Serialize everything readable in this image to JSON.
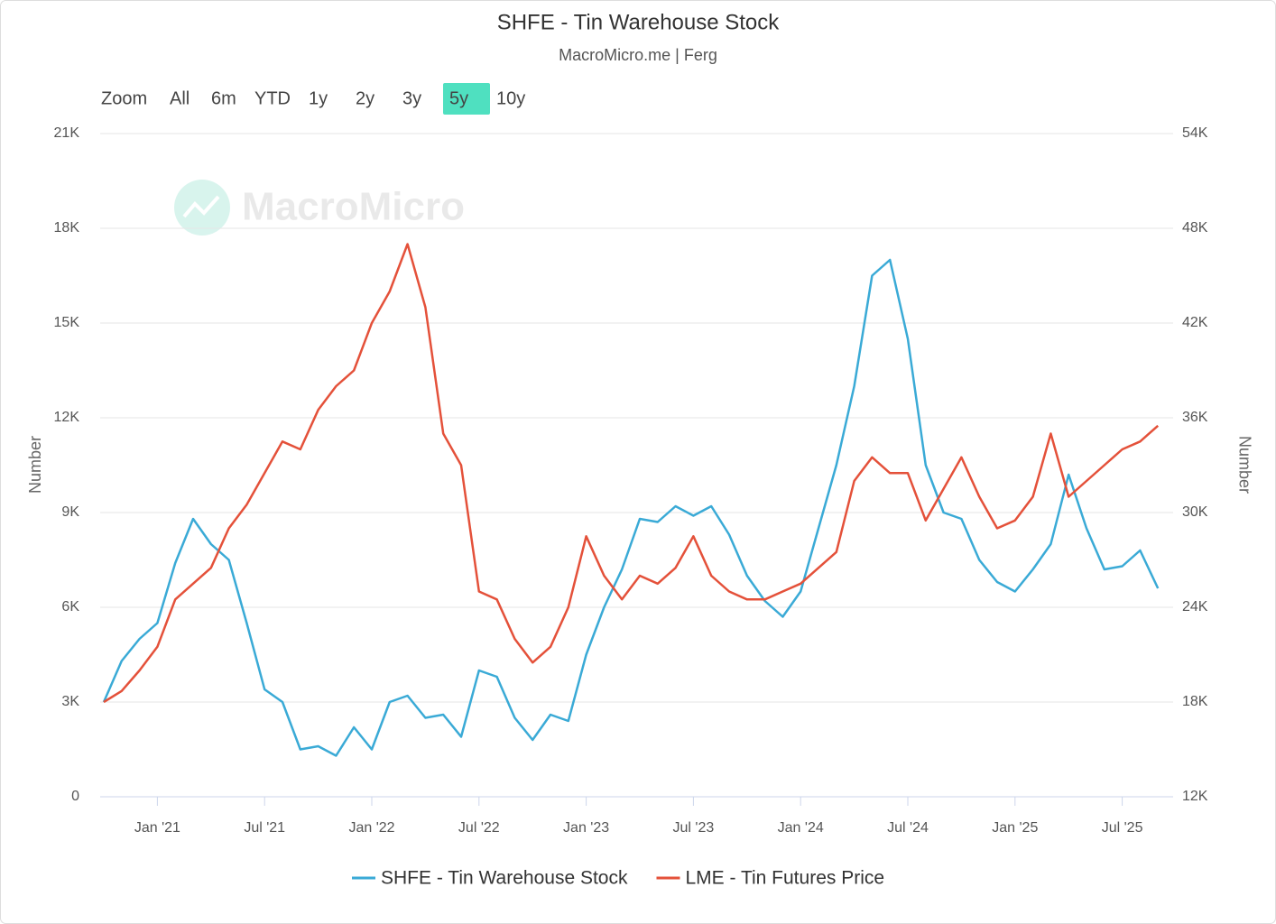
{
  "chart_data": {
    "type": "line",
    "title": "SHFE - Tin Warehouse Stock",
    "subtitle": "MacroMicro.me | Ferg",
    "watermark": "MacroMicro",
    "range_selector": {
      "label": "Zoom",
      "buttons": [
        "All",
        "6m",
        "YTD",
        "1y",
        "2y",
        "3y",
        "5y",
        "10y"
      ],
      "selected": "5y"
    },
    "y_label": "Number",
    "y2_label": "Number",
    "x": [
      "2020-10",
      "2020-11",
      "2020-12",
      "2021-01",
      "2021-02",
      "2021-03",
      "2021-04",
      "2021-05",
      "2021-06",
      "2021-07",
      "2021-08",
      "2021-09",
      "2021-10",
      "2021-11",
      "2021-12",
      "2022-01",
      "2022-02",
      "2022-03",
      "2022-04",
      "2022-05",
      "2022-06",
      "2022-07",
      "2022-08",
      "2022-09",
      "2022-10",
      "2022-11",
      "2022-12",
      "2023-01",
      "2023-02",
      "2023-03",
      "2023-04",
      "2023-05",
      "2023-06",
      "2023-07",
      "2023-08",
      "2023-09",
      "2023-10",
      "2023-11",
      "2023-12",
      "2024-01",
      "2024-02",
      "2024-03",
      "2024-04",
      "2024-05",
      "2024-06",
      "2024-07",
      "2024-08",
      "2024-09",
      "2024-10",
      "2024-11",
      "2024-12",
      "2025-01",
      "2025-02",
      "2025-03",
      "2025-04",
      "2025-05",
      "2025-06",
      "2025-07",
      "2025-08",
      "2025-09"
    ],
    "series": [
      {
        "name": "SHFE - Tin Warehouse Stock",
        "color": "#3aaad6",
        "axis": "y",
        "values": [
          3000,
          4300,
          5000,
          5500,
          7400,
          8800,
          8000,
          7500,
          5500,
          3400,
          3000,
          1500,
          1600,
          1300,
          2200,
          1500,
          3000,
          3200,
          2500,
          2600,
          1900,
          4000,
          3800,
          2500,
          1800,
          2600,
          2400,
          4500,
          6000,
          7200,
          8800,
          8700,
          9200,
          8900,
          9200,
          8300,
          7000,
          6200,
          5700,
          6500,
          8500,
          10500,
          13000,
          16500,
          17000,
          14500,
          10500,
          9000,
          8800,
          7500,
          6800,
          6500,
          7200,
          8000,
          10200,
          8500,
          7200,
          7300,
          7800,
          6600
        ]
      },
      {
        "name": "LME - Tin Futures Price",
        "color": "#e4513a",
        "axis": "y2",
        "values": [
          18000,
          18700,
          20000,
          21500,
          24500,
          25500,
          26500,
          29000,
          30500,
          32500,
          34500,
          34000,
          36500,
          38000,
          39000,
          42000,
          44000,
          47000,
          43000,
          35000,
          33000,
          25000,
          24500,
          22000,
          20500,
          21500,
          24000,
          28500,
          26000,
          24500,
          26000,
          25500,
          26500,
          28500,
          26000,
          25000,
          24500,
          24500,
          25000,
          25500,
          26500,
          27500,
          32000,
          33500,
          32500,
          32500,
          29500,
          31500,
          33500,
          31000,
          29000,
          29500,
          31000,
          35000,
          31000,
          32000,
          33000,
          34000,
          34500,
          35500
        ]
      }
    ],
    "xlim": [
      "2020-10",
      "2025-10"
    ],
    "xticks": [
      {
        "value": "2021-01",
        "label": "Jan '21"
      },
      {
        "value": "2021-07",
        "label": "Jul '21"
      },
      {
        "value": "2022-01",
        "label": "Jan '22"
      },
      {
        "value": "2022-07",
        "label": "Jul '22"
      },
      {
        "value": "2023-01",
        "label": "Jan '23"
      },
      {
        "value": "2023-07",
        "label": "Jul '23"
      },
      {
        "value": "2024-01",
        "label": "Jan '24"
      },
      {
        "value": "2024-07",
        "label": "Jul '24"
      },
      {
        "value": "2025-01",
        "label": "Jan '25"
      },
      {
        "value": "2025-07",
        "label": "Jul '25"
      }
    ],
    "ylim": [
      0,
      21000
    ],
    "yticks": [
      0,
      {
        "value": 3000,
        "label": "3K"
      },
      {
        "value": 6000,
        "label": "6K"
      },
      {
        "value": 9000,
        "label": "9K"
      },
      {
        "value": 12000,
        "label": "12K"
      },
      {
        "value": 15000,
        "label": "15K"
      },
      {
        "value": 18000,
        "label": "18K"
      },
      {
        "value": 21000,
        "label": "21K"
      }
    ],
    "y2lim": [
      12000,
      54000
    ],
    "y2ticks": [
      {
        "value": 12000,
        "label": "12K"
      },
      {
        "value": 18000,
        "label": "18K"
      },
      {
        "value": 24000,
        "label": "24K"
      },
      {
        "value": 30000,
        "label": "30K"
      },
      {
        "value": 36000,
        "label": "36K"
      },
      {
        "value": 42000,
        "label": "42K"
      },
      {
        "value": 48000,
        "label": "48K"
      },
      {
        "value": 54000,
        "label": "54K"
      }
    ],
    "grid": true,
    "legend": "bottom"
  }
}
